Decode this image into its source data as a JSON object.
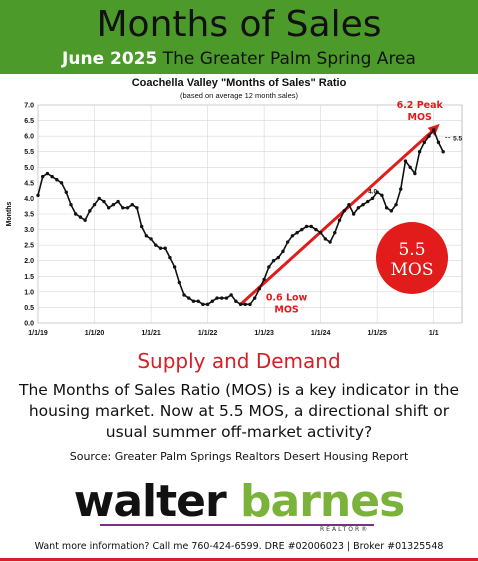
{
  "header": {
    "title": "Months of Sales",
    "date": "June 2025",
    "area": "The Greater Palm Spring Area"
  },
  "section": {
    "heading": "Supply and Demand",
    "body": "The Months of Sales Ratio (MOS) is a key indicator in the housing market.  Now at 5.5 MOS, a directional shift or usual summer off-market activity?",
    "source": "Source: Greater Palm Springs Realtors Desert Housing Report"
  },
  "logo": {
    "first": "walter",
    "second": "barnes",
    "tagline": "REALTOR®"
  },
  "footer": {
    "text": "Want more information? Call me 760-424-6599.  DRE #02006023 | Broker #01325548"
  },
  "colors": {
    "header_green": "#4c9a2a",
    "accent_red": "#d61f26",
    "logo_green": "#7bb23a",
    "logo_purple": "#7b2e8a"
  },
  "chart_data": {
    "type": "line",
    "title": "Coachella Valley \"Months of Sales\" Ratio",
    "subtitle": "(based on average 12 month sales)",
    "ylabel": "Months",
    "xlabel": "",
    "ylim": [
      0,
      7
    ],
    "yticks": [
      "0.0",
      "0.5",
      "1.0",
      "1.5",
      "2.0",
      "2.5",
      "3.0",
      "3.5",
      "4.0",
      "4.5",
      "5.0",
      "5.5",
      "6.0",
      "6.5",
      "7.0"
    ],
    "xticks": [
      "1/1/19",
      "1/1/20",
      "1/1/21",
      "1/1/22",
      "1/1/23",
      "1/1/24",
      "1/1/25",
      "1/1"
    ],
    "grid": true,
    "series": [
      {
        "x_start": "2019-01",
        "values": [
          4.1,
          4.7,
          4.8,
          4.7,
          4.6,
          4.5,
          4.2,
          3.8,
          3.5,
          3.4,
          3.3,
          3.6,
          3.8,
          4.0,
          3.9,
          3.7,
          3.8,
          3.9,
          3.7,
          3.7,
          3.8,
          3.7,
          3.1,
          2.8,
          2.7,
          2.5,
          2.4,
          2.4,
          2.1,
          1.8,
          1.3,
          0.9,
          0.8,
          0.7,
          0.7,
          0.6,
          0.6,
          0.7,
          0.8,
          0.8,
          0.8,
          0.9,
          0.7,
          0.6,
          0.6,
          0.6,
          0.8,
          1.1,
          1.4,
          1.8,
          2.0,
          2.1,
          2.3,
          2.6,
          2.8,
          2.9,
          3.0,
          3.1,
          3.1,
          3.0,
          2.9,
          2.7,
          2.6,
          2.9,
          3.3,
          3.6,
          3.8,
          3.5,
          3.7,
          3.8,
          3.9,
          4.0,
          4.2,
          4.1,
          3.7,
          3.6,
          3.8,
          4.3,
          5.2,
          5.0,
          4.8,
          5.5,
          5.8,
          6.0,
          6.2,
          5.8,
          5.5
        ]
      }
    ],
    "annotations": {
      "peak_label": "6.2 Peak MOS",
      "current_label": "5.5",
      "point_label": "4.0",
      "low_label": "0.6 Low MOS",
      "badge": "5.5 MOS"
    }
  }
}
